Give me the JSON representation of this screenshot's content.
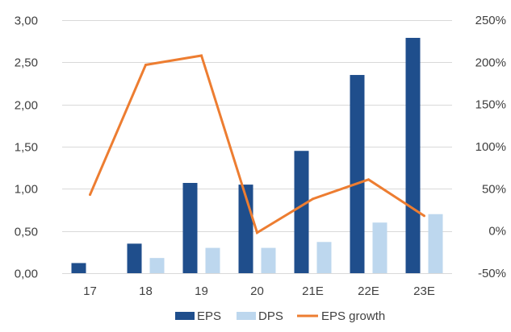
{
  "chart_data": {
    "type": "bar",
    "categories": [
      "17",
      "18",
      "19",
      "20",
      "21E",
      "22E",
      "23E"
    ],
    "series": [
      {
        "name": "EPS",
        "kind": "bar",
        "axis": "left",
        "color": "#1F4E8C",
        "values": [
          0.12,
          0.35,
          1.07,
          1.05,
          1.45,
          2.35,
          2.79
        ]
      },
      {
        "name": "DPS",
        "kind": "bar",
        "axis": "left",
        "color": "#BDD7EE",
        "values": [
          0.0,
          0.18,
          0.3,
          0.3,
          0.37,
          0.6,
          0.7
        ]
      },
      {
        "name": "EPS growth",
        "kind": "line",
        "axis": "right",
        "color": "#ED7D31",
        "values": [
          43,
          197,
          208,
          -2,
          38,
          61,
          18
        ]
      }
    ],
    "y_left": {
      "ylim": [
        0,
        3
      ],
      "ticks": [
        0,
        0.5,
        1,
        1.5,
        2,
        2.5,
        3
      ],
      "tick_labels": [
        "0,00",
        "0,50",
        "1,00",
        "1,50",
        "2,00",
        "2,50",
        "3,00"
      ]
    },
    "y_right": {
      "ylim": [
        -50,
        250
      ],
      "ticks": [
        -50,
        0,
        50,
        100,
        150,
        200,
        250
      ],
      "tick_labels": [
        "-50%",
        "0%",
        "50%",
        "100%",
        "150%",
        "200%",
        "250%"
      ]
    },
    "title": "",
    "xlabel": "",
    "ylabel": "",
    "grid": true,
    "legend": {
      "position": "bottom",
      "entries": [
        "EPS",
        "DPS",
        "EPS growth"
      ]
    }
  }
}
